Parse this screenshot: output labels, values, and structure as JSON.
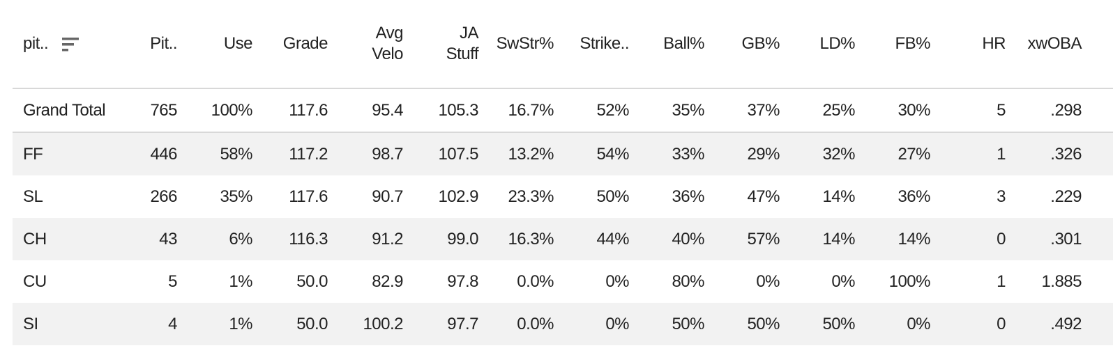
{
  "table": {
    "columns": [
      "pit..",
      "Pit..",
      "Use",
      "Grade",
      "Avg Velo",
      "JA Stuff",
      "SwStr%",
      "Strike..",
      "Ball%",
      "GB%",
      "LD%",
      "FB%",
      "HR",
      "xwOBA"
    ],
    "rows": [
      [
        "Grand Total",
        "765",
        "100%",
        "117.6",
        "95.4",
        "105.3",
        "16.7%",
        "52%",
        "35%",
        "37%",
        "25%",
        "30%",
        "5",
        ".298"
      ],
      [
        "FF",
        "446",
        "58%",
        "117.2",
        "98.7",
        "107.5",
        "13.2%",
        "54%",
        "33%",
        "29%",
        "32%",
        "27%",
        "1",
        ".326"
      ],
      [
        "SL",
        "266",
        "35%",
        "117.6",
        "90.7",
        "102.9",
        "23.3%",
        "50%",
        "36%",
        "47%",
        "14%",
        "36%",
        "3",
        ".229"
      ],
      [
        "CH",
        "43",
        "6%",
        "116.3",
        "91.2",
        "99.0",
        "16.3%",
        "44%",
        "40%",
        "57%",
        "14%",
        "14%",
        "0",
        ".301"
      ],
      [
        "CU",
        "5",
        "1%",
        "50.0",
        "82.9",
        "97.8",
        "0.0%",
        "0%",
        "80%",
        "0%",
        "0%",
        "100%",
        "1",
        "1.885"
      ],
      [
        "SI",
        "4",
        "1%",
        "50.0",
        "100.2",
        "97.7",
        "0.0%",
        "0%",
        "50%",
        "50%",
        "50%",
        "0%",
        "0",
        ".492"
      ]
    ]
  }
}
